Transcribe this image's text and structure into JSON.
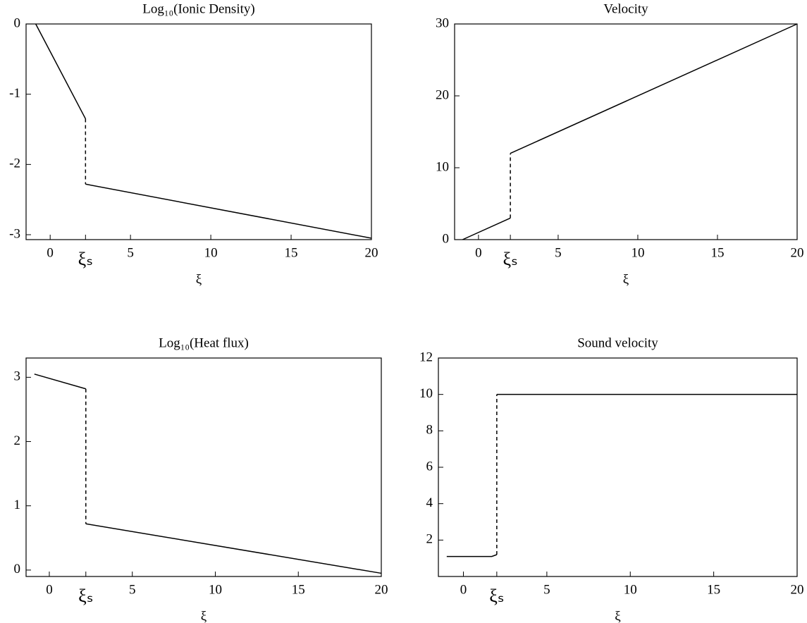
{
  "chart_data": [
    {
      "type": "line",
      "title": "Log₁₀(Ionic Density)",
      "x_label": "ξ",
      "xlim": [
        -1.5,
        20
      ],
      "ylim": [
        -3.07,
        0
      ],
      "xticks": [
        0,
        {
          "value": 2.2,
          "label": "ξₛ"
        },
        5,
        10,
        15,
        20
      ],
      "yticks": [
        0,
        -1,
        -2,
        -3
      ],
      "series": [
        {
          "color": "#000000",
          "dashed": false,
          "x": [
            -0.9,
            2.2,
            null,
            2.2,
            20
          ],
          "values": [
            0,
            -1.35,
            null,
            -2.28,
            -3.05
          ]
        },
        {
          "color": "#000000",
          "dashed": true,
          "x": [
            2.2,
            2.2
          ],
          "values": [
            -1.35,
            -2.28
          ]
        }
      ]
    },
    {
      "type": "line",
      "title": "Velocity",
      "x_label": "ξ",
      "xlim": [
        -1.5,
        20
      ],
      "ylim": [
        0,
        30
      ],
      "xticks": [
        0,
        {
          "value": 2,
          "label": "ξₛ"
        },
        5,
        10,
        15,
        20
      ],
      "yticks": [
        0,
        10,
        20,
        30
      ],
      "series": [
        {
          "color": "#000000",
          "dashed": false,
          "x": [
            -1,
            2,
            null,
            2,
            20
          ],
          "values": [
            0,
            3,
            null,
            12,
            30
          ]
        },
        {
          "color": "#000000",
          "dashed": true,
          "x": [
            2,
            2
          ],
          "values": [
            3,
            12
          ]
        }
      ]
    },
    {
      "type": "line",
      "title": "Log₁₀(Heat flux)",
      "x_label": "ξ",
      "xlim": [
        -1.4,
        20
      ],
      "ylim": [
        -0.1,
        3.3
      ],
      "xticks": [
        0,
        {
          "value": 2.2,
          "label": "ξₛ"
        },
        5,
        10,
        15,
        20
      ],
      "yticks": [
        0,
        1,
        2,
        3
      ],
      "series": [
        {
          "color": "#000000",
          "dashed": false,
          "x": [
            -0.9,
            2.2,
            null,
            2.2,
            20
          ],
          "values": [
            3.05,
            2.82,
            null,
            0.72,
            -0.05
          ]
        },
        {
          "color": "#000000",
          "dashed": true,
          "x": [
            2.2,
            2.2
          ],
          "values": [
            2.82,
            0.72
          ]
        }
      ]
    },
    {
      "type": "line",
      "title": "Sound velocity",
      "x_label": "ξ",
      "xlim": [
        -1.5,
        20
      ],
      "ylim": [
        0,
        12
      ],
      "xticks": [
        0,
        {
          "value": 2,
          "label": "ξₛ"
        },
        5,
        10,
        15,
        20
      ],
      "yticks": [
        2,
        4,
        6,
        8,
        10,
        12
      ],
      "series": [
        {
          "color": "#000000",
          "dashed": false,
          "x": [
            -1,
            1.7,
            2,
            null,
            2,
            20
          ],
          "values": [
            1.1,
            1.1,
            1.2,
            null,
            10,
            10
          ]
        },
        {
          "color": "#000000",
          "dashed": true,
          "x": [
            2,
            2
          ],
          "values": [
            1.2,
            10
          ]
        }
      ]
    }
  ]
}
